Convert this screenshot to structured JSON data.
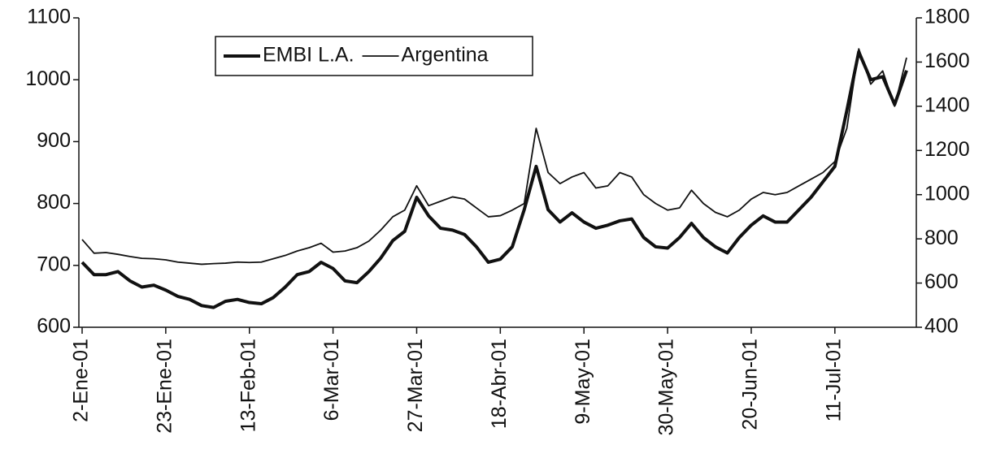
{
  "chart_data": {
    "type": "line",
    "categories": [
      "2-Ene-01",
      null,
      null,
      null,
      null,
      null,
      null,
      "23-Ene-01",
      null,
      null,
      null,
      null,
      null,
      null,
      "13-Feb-01",
      null,
      null,
      null,
      null,
      null,
      null,
      "6-Mar-01",
      null,
      null,
      null,
      null,
      null,
      null,
      "27-Mar-01",
      null,
      null,
      null,
      null,
      null,
      null,
      "18-Abr-01",
      null,
      null,
      null,
      null,
      null,
      null,
      "9-May-01",
      null,
      null,
      null,
      null,
      null,
      null,
      "30-May-01",
      null,
      null,
      null,
      null,
      null,
      null,
      "20-Jun-01",
      null,
      null,
      null,
      null,
      null,
      null,
      "11-Jul-01",
      null,
      null,
      null,
      null,
      null,
      null
    ],
    "series": [
      {
        "name": "EMBI L.A.",
        "color": "#111111",
        "axis": "y",
        "values": [
          705,
          685,
          685,
          690,
          675,
          665,
          668,
          660,
          650,
          645,
          635,
          632,
          642,
          645,
          640,
          638,
          648,
          665,
          685,
          690,
          705,
          695,
          675,
          672,
          690,
          712,
          740,
          755,
          810,
          780,
          760,
          757,
          750,
          730,
          705,
          710,
          730,
          790,
          860,
          790,
          770,
          785,
          770,
          760,
          765,
          772,
          775,
          745,
          730,
          728,
          745,
          768,
          745,
          730,
          720,
          745,
          765,
          780,
          770,
          770,
          790,
          810,
          835,
          860,
          950,
          1045,
          1000,
          1005,
          960,
          1015
        ]
      },
      {
        "name": "Argentina",
        "color": "#111111",
        "axis": "y2",
        "values": [
          797,
          735,
          738,
          730,
          720,
          712,
          710,
          705,
          695,
          690,
          685,
          688,
          690,
          695,
          693,
          695,
          710,
          725,
          745,
          760,
          780,
          740,
          745,
          760,
          790,
          840,
          900,
          930,
          1040,
          950,
          970,
          990,
          980,
          940,
          900,
          905,
          930,
          960,
          1300,
          1100,
          1050,
          1080,
          1100,
          1030,
          1040,
          1100,
          1080,
          1000,
          960,
          930,
          940,
          1020,
          960,
          920,
          900,
          930,
          980,
          1010,
          1000,
          1010,
          1040,
          1070,
          1100,
          1150,
          1300,
          1660,
          1500,
          1560,
          1400,
          1620
        ]
      }
    ],
    "ylim": [
      600,
      1100
    ],
    "yticks": [
      600,
      700,
      800,
      900,
      1000,
      1100
    ],
    "y2lim": [
      400,
      1800
    ],
    "y2ticks": [
      400,
      600,
      800,
      1000,
      1200,
      1400,
      1600,
      1800
    ],
    "legend": "top"
  }
}
